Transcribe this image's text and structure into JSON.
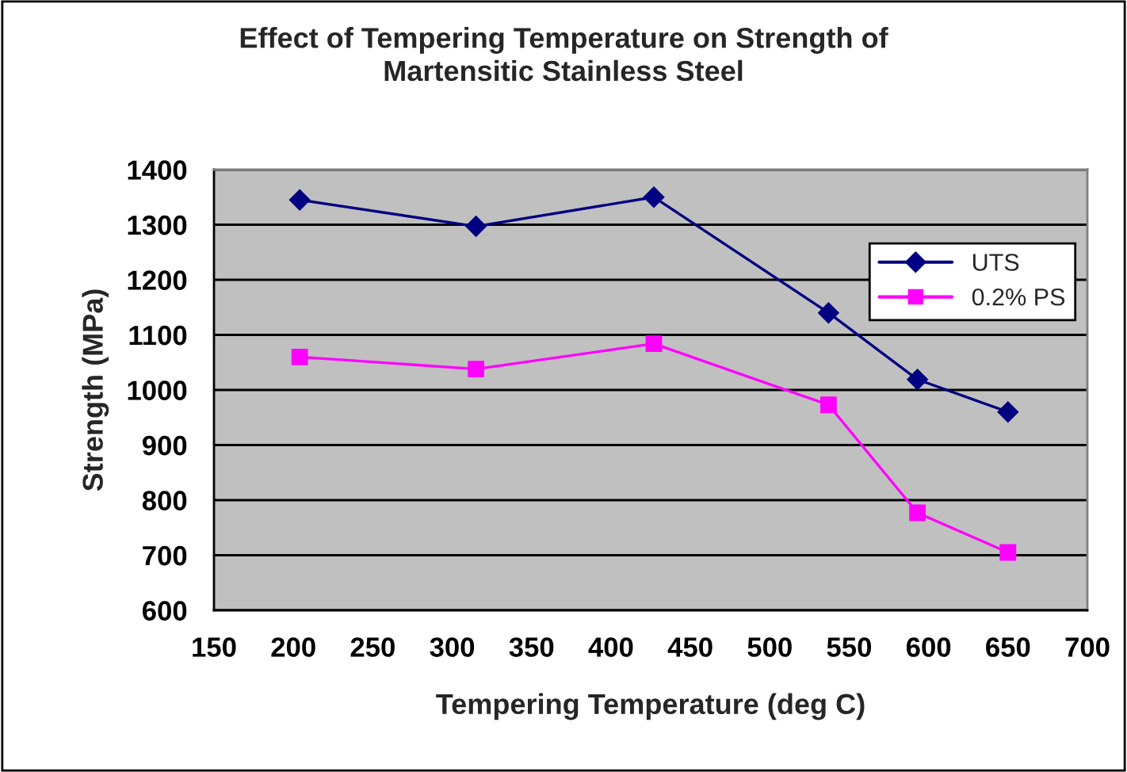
{
  "chart_data": {
    "type": "line",
    "title": "Effect of Tempering Temperature on Strength of\nMartensitic Stainless Steel",
    "xlabel": "Tempering Temperature (deg C)",
    "ylabel": "Strength (MPa)",
    "x": [
      204,
      315,
      427,
      537,
      593,
      650
    ],
    "series": [
      {
        "name": "UTS",
        "color": "#000080",
        "marker": "diamond",
        "values": [
          1345,
          1297,
          1350,
          1140,
          1019,
          960
        ]
      },
      {
        "name": "0.2% PS",
        "color": "#ff00ff",
        "marker": "square",
        "values": [
          1060,
          1038,
          1084,
          973,
          777,
          705
        ]
      }
    ],
    "xlim": [
      150,
      700
    ],
    "xticks": [
      150,
      200,
      250,
      300,
      350,
      400,
      450,
      500,
      550,
      600,
      650,
      700
    ],
    "ylim": [
      600,
      1400
    ],
    "yticks": [
      600,
      700,
      800,
      900,
      1000,
      1100,
      1200,
      1300,
      1400
    ],
    "grid": "y",
    "legend": "right",
    "line_style": "solid"
  }
}
